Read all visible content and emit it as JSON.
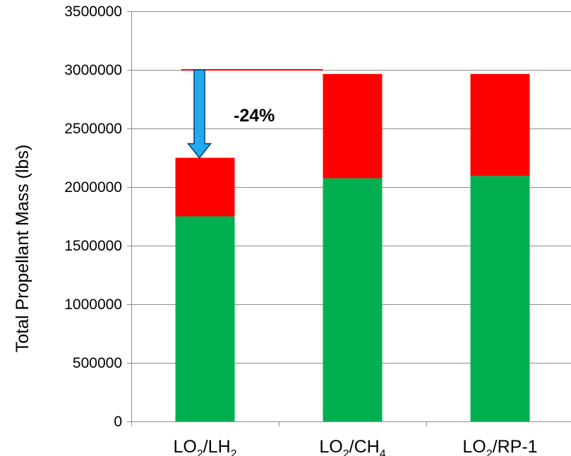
{
  "chart_data": {
    "type": "bar",
    "stacked": true,
    "categories": [
      {
        "base": "LO",
        "sub1": "2",
        "mid": "/",
        "base2": "LH",
        "sub2": "2",
        "tail": ""
      },
      {
        "base": "LO",
        "sub1": "2",
        "mid": "/",
        "base2": "CH",
        "sub2": "4",
        "tail": ""
      },
      {
        "base": "LO",
        "sub1": "2",
        "mid": "/",
        "base2": "RP-1",
        "sub2": "",
        "tail": ""
      }
    ],
    "series": [
      {
        "color": "#00b050",
        "values": [
          1750000,
          2075000,
          2095000
        ]
      },
      {
        "color": "#ff0000",
        "values": [
          500000,
          890000,
          870000
        ]
      }
    ],
    "ylabel": "Total Propellant Mass (lbs)",
    "ylim": [
      0,
      3500000
    ],
    "yticks": [
      0,
      500000,
      1000000,
      1500000,
      2000000,
      2500000,
      3000000,
      3500000
    ],
    "ytick_labels": [
      "0",
      "500000",
      "1000000",
      "1500000",
      "2000000",
      "2500000",
      "3000000",
      "3500000"
    ],
    "grid": true,
    "annotation": {
      "text": "-24%",
      "reference_value": 3000000,
      "reference_color": "#ff0000",
      "arrow_color": "#1eaaf1",
      "arrow_to_value": 2250000
    }
  }
}
